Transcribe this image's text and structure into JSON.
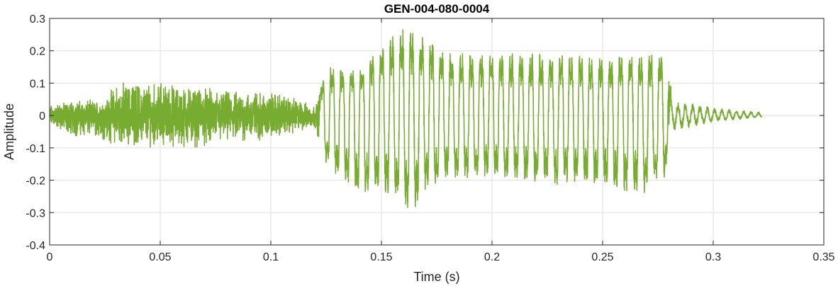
{
  "chart_data": {
    "type": "line",
    "title": "GEN-004-080-0004",
    "xlabel": "Time (s)",
    "ylabel": "Amplitude",
    "xlim": [
      0,
      0.35
    ],
    "ylim": [
      -0.4,
      0.3
    ],
    "xticks": [
      0,
      0.05,
      0.1,
      0.15,
      0.2,
      0.25,
      0.3,
      0.35
    ],
    "xtick_labels": [
      "0",
      "0.05",
      "0.1",
      "0.15",
      "0.2",
      "0.25",
      "0.3",
      "0.35"
    ],
    "yticks": [
      -0.4,
      -0.3,
      -0.2,
      -0.1,
      0,
      0.1,
      0.2,
      0.3
    ],
    "ytick_labels": [
      "-0.4",
      "-0.3",
      "-0.2",
      "-0.1",
      "0",
      "0.1",
      "0.2",
      "0.3"
    ],
    "grid": true,
    "series": [
      {
        "color": "#77ac30",
        "signal_end_s": 0.322,
        "envelope": {
          "t": [
            0,
            0.01,
            0.025,
            0.03,
            0.05,
            0.06,
            0.08,
            0.1,
            0.11,
            0.12,
            0.125,
            0.14,
            0.15,
            0.16,
            0.165,
            0.17,
            0.18,
            0.2,
            0.22,
            0.25,
            0.27,
            0.278,
            0.282,
            0.3,
            0.322
          ],
          "pos": [
            0.035,
            0.05,
            0.05,
            0.11,
            0.11,
            0.1,
            0.08,
            0.08,
            0.06,
            0.03,
            0.16,
            0.15,
            0.24,
            0.28,
            0.28,
            0.26,
            0.2,
            0.2,
            0.2,
            0.19,
            0.2,
            0.2,
            0.05,
            0.025,
            0.01
          ],
          "neg": [
            -0.035,
            -0.07,
            -0.08,
            -0.1,
            -0.1,
            -0.11,
            -0.09,
            -0.08,
            -0.06,
            -0.04,
            -0.16,
            -0.26,
            -0.24,
            -0.31,
            -0.3,
            -0.24,
            -0.21,
            -0.2,
            -0.22,
            -0.23,
            -0.26,
            -0.2,
            -0.05,
            -0.02,
            -0.005
          ]
        },
        "voiced_interval_s": [
          0.122,
          0.28
        ],
        "pitch_period_s": 0.0045
      }
    ]
  }
}
